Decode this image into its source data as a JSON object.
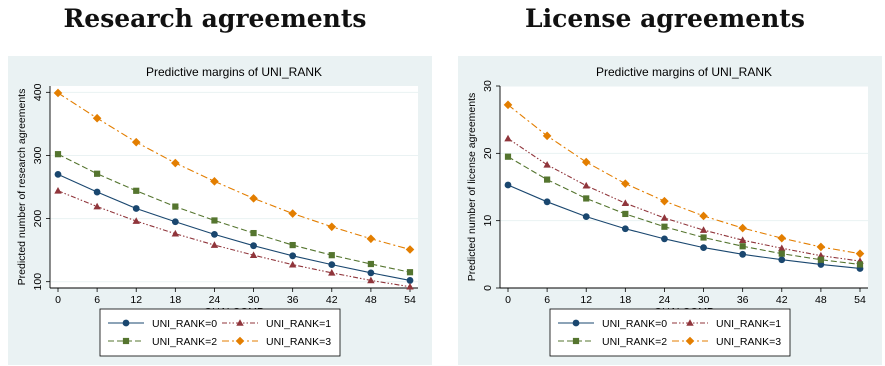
{
  "headings": [
    "Research agreements",
    "License agreements"
  ],
  "colors": {
    "outer_bg": "#eaf2f3",
    "plot_bg": "#ffffff",
    "grid": "#eaf2f3",
    "series": [
      "#1a476f",
      "#90353b",
      "#55752f",
      "#e37e00"
    ]
  },
  "chart_data": [
    {
      "type": "line",
      "title": "Predictive margins of UNI_RANK",
      "xlabel": "QUALCOMP",
      "ylabel": "Predicted number of research agreements",
      "x": [
        0,
        6,
        12,
        18,
        24,
        30,
        36,
        42,
        48,
        54
      ],
      "xticks": [
        "0",
        "6",
        "12",
        "18",
        "24",
        "30",
        "36",
        "42",
        "48",
        "54"
      ],
      "yticks": [
        "100",
        "200",
        "300",
        "400"
      ],
      "ylim": [
        90,
        410
      ],
      "grid": true,
      "legend_position": "bottom",
      "series": [
        {
          "name": "UNI_RANK=0",
          "marker": "circle",
          "dash": "solid",
          "values": [
            270,
            242,
            216,
            195,
            175,
            157,
            141,
            127,
            114,
            102
          ]
        },
        {
          "name": "UNI_RANK=1",
          "marker": "triangle",
          "dash": "dashdotdot",
          "values": [
            244,
            219,
            196,
            176,
            158,
            142,
            127,
            114,
            102,
            92
          ]
        },
        {
          "name": "UNI_RANK=2",
          "marker": "square",
          "dash": "dash",
          "values": [
            302,
            271,
            244,
            219,
            197,
            177,
            158,
            142,
            128,
            115
          ]
        },
        {
          "name": "UNI_RANK=3",
          "marker": "diamond",
          "dash": "dashdot",
          "values": [
            399,
            359,
            321,
            288,
            259,
            232,
            208,
            187,
            168,
            151
          ]
        }
      ]
    },
    {
      "type": "line",
      "title": "Predictive margins of UNI_RANK",
      "xlabel": "QUALCOMP",
      "ylabel": "Predicted number of license agreements",
      "x": [
        0,
        6,
        12,
        18,
        24,
        30,
        36,
        42,
        48,
        54
      ],
      "xticks": [
        "0",
        "6",
        "12",
        "18",
        "24",
        "30",
        "36",
        "42",
        "48",
        "54"
      ],
      "yticks": [
        "0",
        "10",
        "20",
        "30"
      ],
      "ylim": [
        0,
        30
      ],
      "grid": true,
      "legend_position": "bottom",
      "series": [
        {
          "name": "UNI_RANK=0",
          "marker": "circle",
          "dash": "solid",
          "values": [
            15.3,
            12.8,
            10.6,
            8.8,
            7.3,
            6.0,
            5.0,
            4.2,
            3.5,
            2.9
          ]
        },
        {
          "name": "UNI_RANK=1",
          "marker": "triangle",
          "dash": "dashdotdot",
          "values": [
            22.2,
            18.3,
            15.2,
            12.6,
            10.4,
            8.6,
            7.1,
            5.9,
            4.8,
            4.0
          ]
        },
        {
          "name": "UNI_RANK=2",
          "marker": "square",
          "dash": "dash",
          "values": [
            19.5,
            16.1,
            13.3,
            11.0,
            9.1,
            7.5,
            6.2,
            5.1,
            4.2,
            3.5
          ]
        },
        {
          "name": "UNI_RANK=3",
          "marker": "diamond",
          "dash": "dashdot",
          "values": [
            27.2,
            22.6,
            18.7,
            15.5,
            12.9,
            10.7,
            8.9,
            7.4,
            6.1,
            5.1
          ]
        }
      ]
    }
  ]
}
